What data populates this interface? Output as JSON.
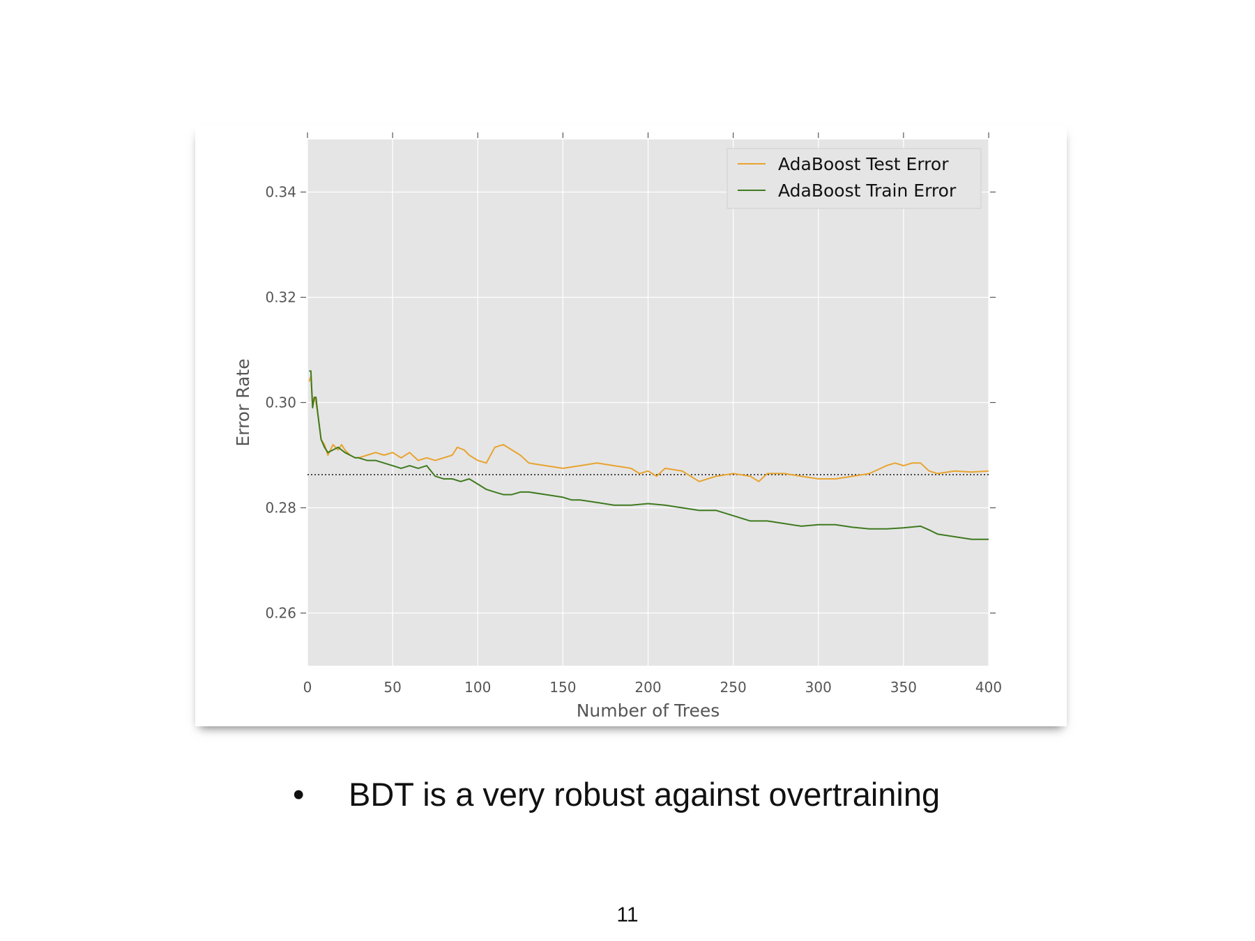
{
  "slide": {
    "bullet_symbol": "•",
    "bullet_text": "BDT is a very robust against overtraining",
    "page_number": "11"
  },
  "chart_data": {
    "type": "line",
    "title": "",
    "xlabel": "Number of Trees",
    "ylabel": "Error Rate",
    "xlim": [
      0,
      400
    ],
    "ylim": [
      0.25,
      0.35
    ],
    "x_ticks": [
      0,
      50,
      100,
      150,
      200,
      250,
      300,
      350,
      400
    ],
    "y_ticks": [
      0.26,
      0.28,
      0.3,
      0.32,
      0.34
    ],
    "x_tick_labels": [
      "0",
      "50",
      "100",
      "150",
      "200",
      "250",
      "300",
      "350",
      "400"
    ],
    "y_tick_labels": [
      "0.26",
      "0.28",
      "0.30",
      "0.32",
      "0.34"
    ],
    "grid": true,
    "legend_position": "top-right",
    "background_color": "#e5e5e5",
    "grid_color": "#ffffff",
    "reference_line": {
      "y": 0.2863,
      "style": "dotted",
      "color": "#000000"
    },
    "series": [
      {
        "name": "AdaBoost Test Error",
        "color": "#e8a32e",
        "x": [
          1,
          2,
          3,
          4,
          5,
          6,
          8,
          10,
          12,
          15,
          18,
          20,
          22,
          25,
          28,
          30,
          35,
          40,
          45,
          50,
          55,
          60,
          65,
          70,
          75,
          80,
          85,
          88,
          92,
          95,
          100,
          105,
          110,
          115,
          120,
          125,
          130,
          140,
          150,
          160,
          170,
          180,
          190,
          195,
          200,
          205,
          210,
          220,
          225,
          230,
          235,
          240,
          250,
          260,
          265,
          270,
          280,
          290,
          300,
          310,
          320,
          330,
          340,
          345,
          350,
          355,
          360,
          365,
          370,
          380,
          390,
          400
        ],
        "y": [
          0.304,
          0.305,
          0.3,
          0.301,
          0.3,
          0.298,
          0.293,
          0.292,
          0.29,
          0.292,
          0.291,
          0.292,
          0.291,
          0.29,
          0.2895,
          0.2895,
          0.29,
          0.2905,
          0.29,
          0.2905,
          0.2895,
          0.2905,
          0.289,
          0.2895,
          0.289,
          0.2895,
          0.29,
          0.2915,
          0.291,
          0.29,
          0.289,
          0.2885,
          0.2915,
          0.292,
          0.291,
          0.29,
          0.2885,
          0.288,
          0.2875,
          0.288,
          0.2885,
          0.288,
          0.2875,
          0.2865,
          0.287,
          0.286,
          0.2875,
          0.287,
          0.286,
          0.285,
          0.2855,
          0.286,
          0.2865,
          0.286,
          0.285,
          0.2865,
          0.2865,
          0.286,
          0.2855,
          0.2855,
          0.286,
          0.2865,
          0.288,
          0.2885,
          0.288,
          0.2885,
          0.2885,
          0.287,
          0.2865,
          0.287,
          0.2868,
          0.287
        ]
      },
      {
        "name": "AdaBoost Train Error",
        "color": "#3e7a1e",
        "x": [
          1,
          2,
          3,
          4,
          5,
          6,
          8,
          10,
          12,
          15,
          18,
          20,
          22,
          25,
          28,
          30,
          35,
          40,
          45,
          50,
          55,
          60,
          65,
          70,
          75,
          80,
          85,
          90,
          95,
          100,
          105,
          110,
          115,
          120,
          125,
          130,
          140,
          150,
          155,
          160,
          170,
          180,
          190,
          200,
          210,
          220,
          230,
          240,
          250,
          260,
          270,
          280,
          290,
          300,
          310,
          320,
          330,
          340,
          350,
          360,
          365,
          370,
          380,
          390,
          400
        ],
        "y": [
          0.306,
          0.306,
          0.299,
          0.301,
          0.301,
          0.298,
          0.293,
          0.2915,
          0.2905,
          0.291,
          0.2915,
          0.291,
          0.2905,
          0.29,
          0.2895,
          0.2895,
          0.289,
          0.289,
          0.2885,
          0.288,
          0.2875,
          0.288,
          0.2875,
          0.288,
          0.286,
          0.2855,
          0.2855,
          0.285,
          0.2855,
          0.2845,
          0.2835,
          0.283,
          0.2825,
          0.2825,
          0.283,
          0.283,
          0.2825,
          0.282,
          0.2815,
          0.2815,
          0.281,
          0.2805,
          0.2805,
          0.2808,
          0.2805,
          0.28,
          0.2795,
          0.2795,
          0.2785,
          0.2775,
          0.2775,
          0.277,
          0.2765,
          0.2768,
          0.2768,
          0.2763,
          0.276,
          0.276,
          0.2762,
          0.2765,
          0.2758,
          0.275,
          0.2745,
          0.274,
          0.274
        ]
      }
    ]
  }
}
